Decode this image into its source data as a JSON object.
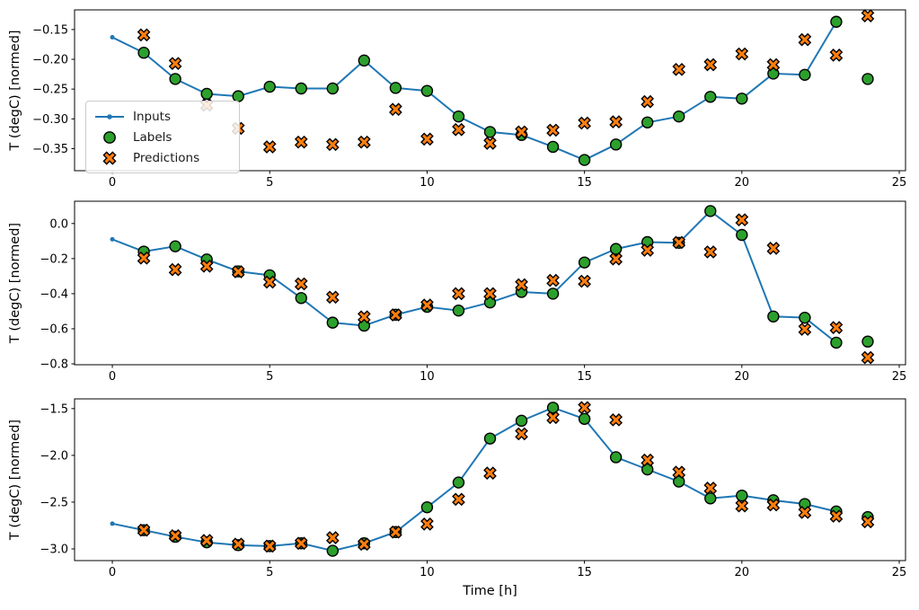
{
  "figure": {
    "xlabel": "Time [h]",
    "ylabel": "T (degC) [normed]",
    "background": "#ffffff",
    "legend": {
      "position": "left-center of first subplot",
      "items": [
        {
          "label": "Inputs",
          "type": "line-dot",
          "color": "#1f77b4"
        },
        {
          "label": "Labels",
          "type": "circle",
          "color": "#2ca02c",
          "edge": "#000000"
        },
        {
          "label": "Predictions",
          "type": "x-marker",
          "color": "#ff7f0e",
          "edge": "#000000"
        }
      ]
    }
  },
  "chart_data": [
    {
      "type": "line+scatter",
      "title": "",
      "xlabel": "",
      "ylabel": "T (degC) [normed]",
      "xlim": [
        -1.2,
        25.2
      ],
      "ylim": [
        -0.387,
        -0.117
      ],
      "xticks": [
        0,
        5,
        10,
        15,
        20,
        25
      ],
      "yticks": [
        -0.15,
        -0.2,
        -0.25,
        -0.3,
        -0.35
      ],
      "ytick_decimals": 2,
      "grid": false,
      "series": [
        {
          "name": "Inputs",
          "plot": "line-dot",
          "color": "#1f77b4",
          "x": [
            0,
            1,
            2,
            3,
            4,
            5,
            6,
            7,
            8,
            9,
            10,
            11,
            12,
            13,
            14,
            15,
            16,
            17,
            18,
            19,
            20,
            21,
            22,
            23
          ],
          "y": [
            -0.163,
            -0.189,
            -0.233,
            -0.258,
            -0.262,
            -0.246,
            -0.249,
            -0.249,
            -0.202,
            -0.248,
            -0.253,
            -0.296,
            -0.322,
            -0.327,
            -0.347,
            -0.369,
            -0.343,
            -0.306,
            -0.296,
            -0.263,
            -0.266,
            -0.224,
            -0.226,
            -0.137
          ]
        },
        {
          "name": "Labels",
          "plot": "scatter-circle",
          "color": "#2ca02c",
          "edgecolor": "#000000",
          "x": [
            1,
            2,
            3,
            4,
            5,
            6,
            7,
            8,
            9,
            10,
            11,
            12,
            13,
            14,
            15,
            16,
            17,
            18,
            19,
            20,
            21,
            22,
            23,
            24
          ],
          "y": [
            -0.189,
            -0.233,
            -0.258,
            -0.262,
            -0.246,
            -0.249,
            -0.249,
            -0.202,
            -0.248,
            -0.253,
            -0.296,
            -0.322,
            -0.327,
            -0.347,
            -0.369,
            -0.343,
            -0.306,
            -0.296,
            -0.263,
            -0.266,
            -0.224,
            -0.226,
            -0.137,
            -0.233
          ]
        },
        {
          "name": "Predictions",
          "plot": "scatter-x",
          "color": "#ff7f0e",
          "edgecolor": "#000000",
          "x": [
            1,
            2,
            3,
            4,
            5,
            6,
            7,
            8,
            9,
            10,
            11,
            12,
            13,
            14,
            15,
            16,
            17,
            18,
            19,
            20,
            21,
            22,
            23,
            24
          ],
          "y": [
            -0.159,
            -0.207,
            -0.277,
            -0.316,
            -0.347,
            -0.339,
            -0.343,
            -0.339,
            -0.284,
            -0.334,
            -0.318,
            -0.341,
            -0.322,
            -0.319,
            -0.307,
            -0.305,
            -0.271,
            -0.217,
            -0.209,
            -0.191,
            -0.209,
            -0.167,
            -0.193,
            -0.127
          ]
        }
      ]
    },
    {
      "type": "line+scatter",
      "title": "",
      "xlabel": "",
      "ylabel": "T (degC) [normed]",
      "xlim": [
        -1.2,
        25.2
      ],
      "ylim": [
        -0.805,
        0.127
      ],
      "xticks": [
        0,
        5,
        10,
        15,
        20,
        25
      ],
      "yticks": [
        0.0,
        -0.2,
        -0.4,
        -0.6,
        -0.8
      ],
      "ytick_decimals": 1,
      "grid": false,
      "series": [
        {
          "name": "Inputs",
          "plot": "line-dot",
          "color": "#1f77b4",
          "x": [
            0,
            1,
            2,
            3,
            4,
            5,
            6,
            7,
            8,
            9,
            10,
            11,
            12,
            13,
            14,
            15,
            16,
            17,
            18,
            19,
            20,
            21,
            22,
            23
          ],
          "y": [
            -0.09,
            -0.16,
            -0.13,
            -0.205,
            -0.273,
            -0.295,
            -0.425,
            -0.565,
            -0.582,
            -0.52,
            -0.475,
            -0.496,
            -0.45,
            -0.39,
            -0.4,
            -0.222,
            -0.145,
            -0.106,
            -0.11,
            0.071,
            -0.065,
            -0.53,
            -0.537,
            -0.679
          ]
        },
        {
          "name": "Labels",
          "plot": "scatter-circle",
          "color": "#2ca02c",
          "edgecolor": "#000000",
          "x": [
            1,
            2,
            3,
            4,
            5,
            6,
            7,
            8,
            9,
            10,
            11,
            12,
            13,
            14,
            15,
            16,
            17,
            18,
            19,
            20,
            21,
            22,
            23,
            24
          ],
          "y": [
            -0.16,
            -0.13,
            -0.205,
            -0.273,
            -0.295,
            -0.425,
            -0.565,
            -0.582,
            -0.52,
            -0.475,
            -0.496,
            -0.45,
            -0.39,
            -0.4,
            -0.222,
            -0.145,
            -0.106,
            -0.11,
            0.071,
            -0.065,
            -0.53,
            -0.537,
            -0.679,
            -0.673
          ]
        },
        {
          "name": "Predictions",
          "plot": "scatter-x",
          "color": "#ff7f0e",
          "edgecolor": "#000000",
          "x": [
            1,
            2,
            3,
            4,
            5,
            6,
            7,
            8,
            9,
            10,
            11,
            12,
            13,
            14,
            15,
            16,
            17,
            18,
            19,
            20,
            21,
            22,
            23,
            24
          ],
          "y": [
            -0.197,
            -0.263,
            -0.243,
            -0.275,
            -0.334,
            -0.344,
            -0.42,
            -0.532,
            -0.521,
            -0.465,
            -0.4,
            -0.4,
            -0.349,
            -0.324,
            -0.329,
            -0.202,
            -0.152,
            -0.108,
            -0.162,
            0.021,
            -0.141,
            -0.603,
            -0.593,
            -0.764
          ]
        }
      ]
    },
    {
      "type": "line+scatter",
      "title": "",
      "xlabel": "Time [h]",
      "ylabel": "T (degC) [normed]",
      "xlim": [
        -1.2,
        25.2
      ],
      "ylim": [
        -3.125,
        -1.396
      ],
      "xticks": [
        0,
        5,
        10,
        15,
        20,
        25
      ],
      "yticks": [
        -1.5,
        -2.0,
        -2.5,
        -3.0
      ],
      "ytick_decimals": 1,
      "grid": false,
      "series": [
        {
          "name": "Inputs",
          "plot": "line-dot",
          "color": "#1f77b4",
          "x": [
            0,
            1,
            2,
            3,
            4,
            5,
            6,
            7,
            8,
            9,
            10,
            11,
            12,
            13,
            14,
            15,
            16,
            17,
            18,
            19,
            20,
            21,
            22,
            23
          ],
          "y": [
            -2.73,
            -2.8,
            -2.87,
            -2.93,
            -2.96,
            -2.97,
            -2.94,
            -3.02,
            -2.94,
            -2.82,
            -2.555,
            -2.29,
            -1.82,
            -1.63,
            -1.49,
            -1.61,
            -2.02,
            -2.15,
            -2.28,
            -2.46,
            -2.43,
            -2.48,
            -2.52,
            -2.6
          ]
        },
        {
          "name": "Labels",
          "plot": "scatter-circle",
          "color": "#2ca02c",
          "edgecolor": "#000000",
          "x": [
            1,
            2,
            3,
            4,
            5,
            6,
            7,
            8,
            9,
            10,
            11,
            12,
            13,
            14,
            15,
            16,
            17,
            18,
            19,
            20,
            21,
            22,
            23,
            24
          ],
          "y": [
            -2.8,
            -2.87,
            -2.93,
            -2.96,
            -2.97,
            -2.94,
            -3.02,
            -2.94,
            -2.82,
            -2.555,
            -2.29,
            -1.82,
            -1.63,
            -1.49,
            -1.61,
            -2.02,
            -2.15,
            -2.28,
            -2.46,
            -2.43,
            -2.48,
            -2.52,
            -2.6,
            -2.66
          ]
        },
        {
          "name": "Predictions",
          "plot": "scatter-x",
          "color": "#ff7f0e",
          "edgecolor": "#000000",
          "x": [
            1,
            2,
            3,
            4,
            5,
            6,
            7,
            8,
            9,
            10,
            11,
            12,
            13,
            14,
            15,
            16,
            17,
            18,
            19,
            20,
            21,
            22,
            23,
            24
          ],
          "y": [
            -2.8,
            -2.86,
            -2.91,
            -2.95,
            -2.97,
            -2.94,
            -2.88,
            -2.95,
            -2.82,
            -2.735,
            -2.47,
            -2.19,
            -1.77,
            -1.595,
            -1.49,
            -1.62,
            -2.05,
            -2.18,
            -2.35,
            -2.54,
            -2.53,
            -2.61,
            -2.65,
            -2.71
          ]
        }
      ]
    }
  ]
}
